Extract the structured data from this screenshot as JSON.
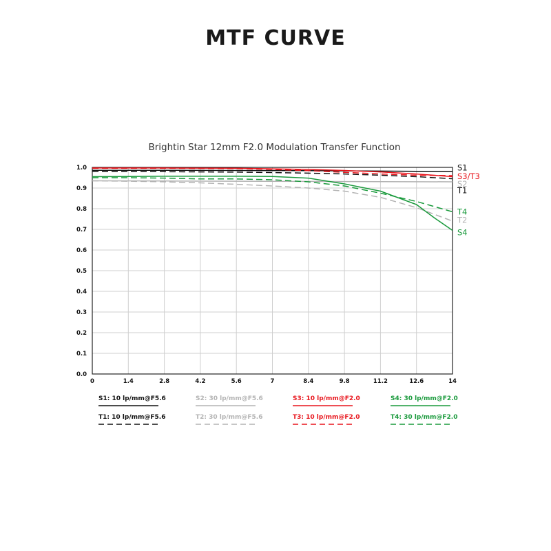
{
  "page": {
    "title": "MTF CURVE"
  },
  "chart_data": {
    "type": "line",
    "title": "Brightin Star 12mm F2.0 Modulation Transfer Function",
    "xlim": [
      0,
      14
    ],
    "ylim": [
      0,
      1.0
    ],
    "x_ticks": [
      "0",
      "1.4",
      "2.8",
      "4.2",
      "5.6",
      "7",
      "8.4",
      "9.8",
      "11.2",
      "12.6",
      "14"
    ],
    "y_ticks": [
      "0.0",
      "0.1",
      "0.2",
      "0.3",
      "0.4",
      "0.5",
      "0.6",
      "0.7",
      "0.8",
      "0.9",
      "1.0"
    ],
    "grid": true,
    "series": [
      {
        "name": "S1",
        "legend": "S1: 10 lp/mm@F5.6",
        "color": "#111111",
        "dash": false,
        "x": [
          0,
          2.8,
          5.6,
          8.4,
          11.2,
          12.6,
          14
        ],
        "y": [
          0.986,
          0.986,
          0.985,
          0.984,
          0.982,
          0.981,
          0.98
        ]
      },
      {
        "name": "T1",
        "legend": "T1: 10 lp/mm@F5.6",
        "color": "#111111",
        "dash": true,
        "x": [
          0,
          2.8,
          5.6,
          7,
          8.4,
          9.8,
          11.2,
          12.6,
          14
        ],
        "y": [
          0.98,
          0.979,
          0.977,
          0.975,
          0.972,
          0.968,
          0.962,
          0.955,
          0.945
        ]
      },
      {
        "name": "S2",
        "legend": "S2: 30 lp/mm@F5.6",
        "color": "#b3b3b3",
        "dash": false,
        "x": [
          0,
          2.8,
          5.6,
          8.4,
          11.2,
          14
        ],
        "y": [
          0.935,
          0.934,
          0.933,
          0.932,
          0.931,
          0.93
        ]
      },
      {
        "name": "T2",
        "legend": "T2: 30 lp/mm@F5.6",
        "color": "#b3b3b3",
        "dash": true,
        "x": [
          0,
          1.4,
          2.8,
          4.2,
          5.6,
          7,
          8.4,
          9.8,
          11.2,
          12.6,
          14
        ],
        "y": [
          0.935,
          0.933,
          0.93,
          0.925,
          0.918,
          0.91,
          0.9,
          0.885,
          0.855,
          0.805,
          0.74
        ]
      },
      {
        "name": "S3",
        "legend": "S3: 10 lp/mm@F2.0",
        "color": "#e8141b",
        "dash": false,
        "x": [
          0,
          2.8,
          5.6,
          7,
          8.4,
          9.8,
          11.2,
          12.6,
          14
        ],
        "y": [
          0.997,
          0.997,
          0.996,
          0.993,
          0.99,
          0.985,
          0.978,
          0.968,
          0.955
        ]
      },
      {
        "name": "T3",
        "legend": "T3: 10 lp/mm@F2.0",
        "color": "#e8141b",
        "dash": true,
        "x": [
          0,
          2.8,
          5.6,
          7,
          8.4,
          9.8,
          11.2,
          12.6,
          14
        ],
        "y": [
          0.996,
          0.996,
          0.994,
          0.99,
          0.984,
          0.976,
          0.968,
          0.962,
          0.96
        ]
      },
      {
        "name": "S4",
        "legend": "S4: 30 lp/mm@F2.0",
        "color": "#1a9a3c",
        "dash": false,
        "x": [
          0,
          1.4,
          2.8,
          4.2,
          5.6,
          7,
          8.4,
          9.8,
          11.2,
          12.6,
          13.3,
          14
        ],
        "y": [
          0.955,
          0.956,
          0.957,
          0.957,
          0.957,
          0.956,
          0.948,
          0.92,
          0.885,
          0.82,
          0.755,
          0.695
        ]
      },
      {
        "name": "T4",
        "legend": "T4: 30 lp/mm@F2.0",
        "color": "#1a9a3c",
        "dash": true,
        "x": [
          0,
          1.4,
          2.8,
          4.2,
          5.6,
          7,
          8.4,
          9.8,
          11.2,
          12.6,
          14
        ],
        "y": [
          0.95,
          0.95,
          0.948,
          0.944,
          0.944,
          0.94,
          0.93,
          0.91,
          0.875,
          0.835,
          0.785
        ]
      }
    ],
    "end_labels": [
      {
        "text": "S1",
        "color": "#111111",
        "y": 0.998
      },
      {
        "text": "S3/T3",
        "color": "#e8141b",
        "y": 0.957
      },
      {
        "text": "S2",
        "color": "#b3b3b3",
        "y": 0.92
      },
      {
        "text": "T1",
        "color": "#111111",
        "y": 0.888
      },
      {
        "text": "T4",
        "color": "#1a9a3c",
        "y": 0.785
      },
      {
        "text": "T2",
        "color": "#b3b3b3",
        "y": 0.745
      },
      {
        "text": "S4",
        "color": "#1a9a3c",
        "y": 0.685
      }
    ]
  }
}
